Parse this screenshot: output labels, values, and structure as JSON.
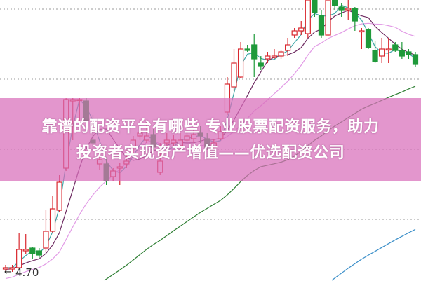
{
  "banner": {
    "line1": "靠谱的配资平台有哪些 专业股票配资服务，助力",
    "line2": "投资者实现资产增值——优选配资公司"
  },
  "chart_data": {
    "type": "candlestick",
    "price_label": "4.70",
    "grid": true,
    "colors": {
      "up": "#d9272e",
      "down": "#1f9a3a",
      "ma5": "#3fa7a8",
      "ma10": "#6e2b61",
      "ma20": "#e29be6",
      "ma60": "#2f7f34",
      "ma120": "#3b8fc9",
      "banner": "#d86eba"
    },
    "ohlc_order": [
      "open",
      "close",
      "high",
      "low"
    ],
    "candles": [
      [
        4.74,
        4.75,
        4.77,
        4.72
      ],
      [
        4.74,
        4.75,
        4.77,
        4.72
      ],
      [
        4.75,
        4.88,
        5.0,
        4.74
      ],
      [
        4.87,
        4.88,
        4.99,
        4.85
      ],
      [
        4.89,
        4.85,
        4.9,
        4.81
      ],
      [
        4.87,
        4.84,
        4.89,
        4.82
      ],
      [
        4.89,
        5.01,
        5.16,
        4.86
      ],
      [
        5.01,
        5.17,
        5.26,
        5.0
      ],
      [
        5.16,
        5.36,
        5.41,
        5.15
      ],
      [
        5.46,
        5.95,
        5.96,
        5.44
      ],
      [
        5.94,
        5.95,
        5.96,
        5.66
      ],
      [
        5.95,
        5.95,
        5.96,
        5.79
      ],
      [
        5.94,
        5.8,
        5.96,
        5.76
      ],
      [
        5.66,
        5.64,
        5.84,
        5.59
      ],
      [
        5.49,
        5.52,
        5.57,
        5.45
      ],
      [
        5.49,
        5.37,
        5.54,
        5.34
      ],
      [
        5.4,
        5.44,
        5.46,
        5.37
      ],
      [
        5.46,
        5.47,
        5.5,
        5.34
      ],
      [
        5.49,
        5.51,
        5.59,
        5.46
      ],
      [
        5.61,
        5.66,
        5.69,
        5.56
      ],
      [
        5.69,
        5.71,
        5.81,
        5.66
      ],
      [
        5.66,
        5.69,
        5.79,
        5.64
      ],
      [
        5.7,
        5.61,
        5.74,
        5.59
      ],
      [
        5.43,
        5.51,
        5.64,
        5.41
      ],
      [
        5.64,
        5.66,
        5.71,
        5.61
      ],
      [
        5.64,
        5.66,
        5.7,
        5.61
      ],
      [
        5.62,
        5.66,
        5.71,
        5.59
      ],
      [
        5.66,
        5.69,
        5.76,
        5.64
      ],
      [
        5.67,
        5.7,
        5.74,
        5.64
      ],
      [
        5.71,
        5.69,
        5.76,
        5.64
      ],
      [
        5.67,
        5.61,
        5.71,
        5.59
      ],
      [
        5.61,
        5.64,
        5.67,
        5.59
      ],
      [
        5.67,
        5.72,
        5.76,
        5.66
      ],
      [
        5.86,
        6.06,
        6.11,
        5.84
      ],
      [
        6.04,
        6.21,
        6.31,
        6.01
      ],
      [
        6.11,
        6.31,
        6.36,
        6.1
      ],
      [
        6.31,
        6.3,
        6.34,
        6.29
      ],
      [
        6.34,
        6.24,
        6.42,
        6.11
      ],
      [
        6.21,
        6.19,
        6.26,
        6.16
      ],
      [
        6.24,
        6.26,
        6.29,
        6.21
      ],
      [
        6.25,
        6.26,
        6.31,
        6.24
      ],
      [
        6.26,
        6.29,
        6.3,
        6.24
      ],
      [
        6.3,
        6.34,
        6.39,
        6.26
      ],
      [
        6.41,
        6.44,
        6.46,
        6.39
      ],
      [
        6.44,
        6.46,
        6.51,
        6.41
      ],
      [
        6.42,
        6.66,
        6.66,
        6.39
      ],
      [
        6.66,
        6.57,
        6.66,
        6.54
      ],
      [
        6.55,
        6.41,
        6.59,
        6.39
      ],
      [
        6.41,
        6.66,
        6.66,
        6.4
      ],
      [
        6.66,
        6.62,
        6.66,
        6.59
      ],
      [
        6.61,
        6.59,
        6.64,
        6.54
      ],
      [
        6.59,
        6.6,
        6.66,
        6.52
      ],
      [
        6.6,
        6.51,
        6.61,
        6.44
      ],
      [
        6.44,
        6.44,
        6.46,
        6.31
      ],
      [
        6.45,
        6.32,
        6.46,
        6.31
      ],
      [
        6.3,
        6.22,
        6.37,
        6.21
      ],
      [
        6.26,
        6.31,
        6.39,
        6.21
      ],
      [
        6.31,
        6.31,
        6.39,
        6.21
      ],
      [
        6.34,
        6.3,
        6.36,
        6.29
      ],
      [
        6.3,
        6.26,
        6.36,
        6.24
      ],
      [
        6.29,
        6.27,
        6.31,
        6.24
      ],
      [
        6.27,
        6.2,
        6.29,
        6.18
      ]
    ]
  }
}
